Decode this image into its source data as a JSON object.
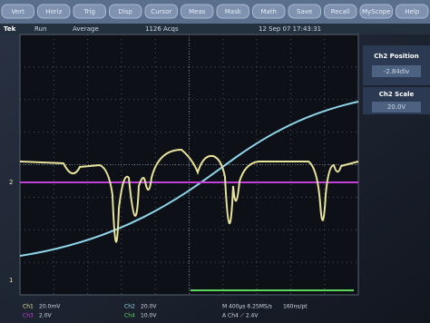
{
  "menu": [
    "Vert",
    "Horiz",
    "Trig",
    "Disp",
    "Cursor",
    "Meas",
    "Mask",
    "Math",
    "Save",
    "Recall",
    "MyScope",
    "Help"
  ],
  "status": {
    "brand": "Tek",
    "state": "Run",
    "mode": "Average",
    "acquisitions": "1126 Acqs",
    "timestamp": "12 Sep 07 17:43:31"
  },
  "side_panel": [
    {
      "label": "Ch2 Position",
      "value": "-2.84div"
    },
    {
      "label": "Ch2 Scale",
      "value": "20.0V"
    }
  ],
  "markers": [
    "2",
    "1"
  ],
  "footer": {
    "channels": [
      {
        "name": "Ch1",
        "scale": "20.0mV"
      },
      {
        "name": "Ch2",
        "scale": "20.0V"
      },
      {
        "name": "Ch3",
        "scale": "2.0V"
      },
      {
        "name": "Ch4",
        "scale": "10.0V"
      }
    ],
    "timebase": "M 400µs 6.25MS/s",
    "trigger": "A Ch4 ⟋ 2.4V",
    "resolution": "160ns/pt"
  }
}
